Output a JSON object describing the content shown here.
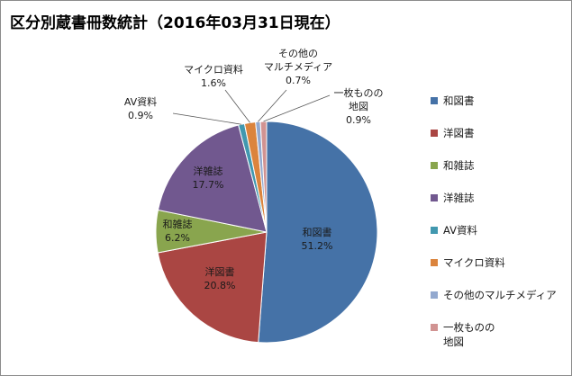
{
  "chart_data": {
    "type": "pie",
    "title": "区分別蔵書冊数統計（2016年03月31日現在）",
    "slices": [
      {
        "name": "和図書",
        "value": 51.2,
        "label": "51.2%",
        "color": "#4572a7"
      },
      {
        "name": "洋図書",
        "value": 20.8,
        "label": "20.8%",
        "color": "#aa4643"
      },
      {
        "name": "和雑誌",
        "value": 6.2,
        "label": "6.2%",
        "color": "#89a54e"
      },
      {
        "name": "洋雑誌",
        "value": 17.7,
        "label": "17.7%",
        "color": "#71588f"
      },
      {
        "name": "AV資料",
        "value": 0.9,
        "label": "0.9%",
        "color": "#4198af"
      },
      {
        "name": "マイクロ資料",
        "value": 1.6,
        "label": "1.6%",
        "color": "#db843d"
      },
      {
        "name": "その他のマルチメディア",
        "value": 0.7,
        "label": "0.7%",
        "color": "#93a9cf"
      },
      {
        "name": "一枚ものの地図",
        "value": 0.9,
        "label": "0.9%",
        "color": "#d19392"
      }
    ],
    "legend_position": "right"
  }
}
